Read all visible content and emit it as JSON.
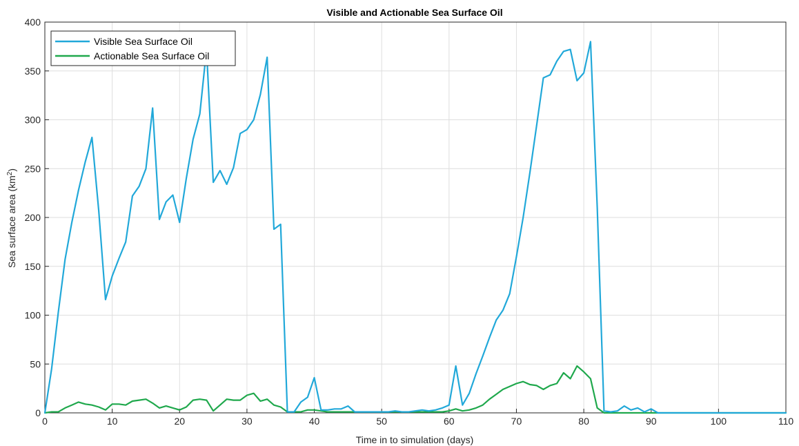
{
  "chart_data": {
    "type": "line",
    "title": "Visible and Actionable Sea Surface Oil",
    "xlabel": "Time in to simulation (days)",
    "ylabel_main": "Sea surface area (km",
    "ylabel_sup": "2",
    "ylabel_close": ")",
    "xlim": [
      0,
      110
    ],
    "ylim": [
      0,
      400
    ],
    "xticks": [
      0,
      10,
      20,
      30,
      40,
      50,
      60,
      70,
      80,
      90,
      100,
      110
    ],
    "yticks": [
      0,
      50,
      100,
      150,
      200,
      250,
      300,
      350,
      400
    ],
    "grid": true,
    "legend_position": "top-left",
    "series": [
      {
        "name": "Visible Sea Surface Oil",
        "color": "#21a8d9",
        "x": [
          0,
          1,
          2,
          3,
          4,
          5,
          6,
          7,
          8,
          9,
          10,
          11,
          12,
          13,
          14,
          15,
          16,
          17,
          18,
          19,
          20,
          21,
          22,
          23,
          24,
          25,
          26,
          27,
          28,
          29,
          30,
          31,
          32,
          33,
          34,
          35,
          36,
          37,
          38,
          39,
          40,
          41,
          42,
          43,
          44,
          45,
          46,
          47,
          48,
          49,
          50,
          51,
          52,
          53,
          54,
          55,
          56,
          57,
          58,
          59,
          60,
          61,
          62,
          63,
          64,
          65,
          66,
          67,
          68,
          69,
          70,
          71,
          72,
          73,
          74,
          75,
          76,
          77,
          78,
          79,
          80,
          81,
          82,
          83,
          84,
          85,
          86,
          87,
          88,
          89,
          90,
          91,
          92,
          93,
          94,
          95,
          96,
          97,
          98,
          99,
          100,
          101,
          102,
          103,
          104,
          105,
          106,
          107,
          108,
          109,
          110
        ],
        "values": [
          0,
          45,
          103,
          157,
          195,
          228,
          257,
          282,
          207,
          116,
          140,
          158,
          175,
          222,
          232,
          250,
          312,
          198,
          216,
          223,
          195,
          240,
          280,
          306,
          372,
          236,
          248,
          234,
          251,
          286,
          290,
          300,
          326,
          364,
          188,
          193,
          1,
          1,
          11,
          16,
          36,
          3,
          3,
          4,
          4,
          7,
          1,
          1,
          1,
          1,
          1,
          1,
          2,
          1,
          1,
          2,
          3,
          2,
          3,
          5,
          8,
          48,
          8,
          20,
          40,
          58,
          77,
          95,
          105,
          122,
          160,
          200,
          246,
          294,
          343,
          346,
          360,
          370,
          372,
          340,
          348,
          380,
          210,
          2,
          1,
          2,
          7,
          3,
          5,
          1,
          4,
          0,
          0,
          0,
          0,
          0,
          0,
          0,
          0,
          0,
          0,
          0,
          0,
          0,
          0,
          0,
          0,
          0,
          0,
          0,
          0
        ]
      },
      {
        "name": "Actionable Sea Surface Oil",
        "color": "#1fa84c",
        "x": [
          0,
          1,
          2,
          3,
          4,
          5,
          6,
          7,
          8,
          9,
          10,
          11,
          12,
          13,
          14,
          15,
          16,
          17,
          18,
          19,
          20,
          21,
          22,
          23,
          24,
          25,
          26,
          27,
          28,
          29,
          30,
          31,
          32,
          33,
          34,
          35,
          36,
          37,
          38,
          39,
          40,
          41,
          42,
          43,
          44,
          45,
          46,
          47,
          48,
          49,
          50,
          51,
          52,
          53,
          54,
          55,
          56,
          57,
          58,
          59,
          60,
          61,
          62,
          63,
          64,
          65,
          66,
          67,
          68,
          69,
          70,
          71,
          72,
          73,
          74,
          75,
          76,
          77,
          78,
          79,
          80,
          81,
          82,
          83,
          84,
          85,
          86,
          87,
          88,
          89,
          90,
          91,
          92,
          93,
          94,
          95,
          96,
          97,
          98,
          99,
          100,
          101,
          102,
          103,
          104,
          105,
          106,
          107,
          108,
          109,
          110
        ],
        "values": [
          0,
          1,
          1,
          5,
          8,
          11,
          9,
          8,
          6,
          3,
          9,
          9,
          8,
          12,
          13,
          14,
          10,
          5,
          7,
          5,
          3,
          6,
          13,
          14,
          13,
          2,
          8,
          14,
          13,
          13,
          18,
          20,
          12,
          14,
          8,
          6,
          1,
          1,
          1,
          3,
          3,
          2,
          1,
          1,
          1,
          1,
          1,
          1,
          1,
          1,
          1,
          1,
          1,
          1,
          1,
          1,
          1,
          1,
          1,
          1,
          2,
          4,
          2,
          3,
          5,
          8,
          14,
          19,
          24,
          27,
          30,
          32,
          29,
          28,
          24,
          28,
          30,
          41,
          35,
          48,
          42,
          35,
          5,
          0,
          0,
          0,
          0,
          0,
          0,
          0,
          0,
          0,
          0,
          0,
          0,
          0,
          0,
          0,
          0,
          0,
          0,
          0,
          0,
          0,
          0,
          0,
          0,
          0,
          0,
          0,
          0
        ]
      }
    ]
  }
}
